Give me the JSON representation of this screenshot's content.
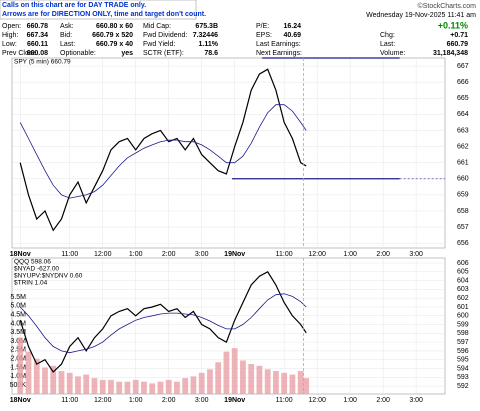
{
  "header": {
    "notice": [
      "Calls on this chart are for DAY TRADE only.",
      "Arrows are for DIRECTION ONLY, time and target don't count."
    ],
    "credit": "©StockCharts.com",
    "date": "Wednesday  19-Nov-2025  11:41 am",
    "stats": [
      [
        [
          "Open:",
          "660.78"
        ],
        [
          "Ask:",
          "660.80 x 60"
        ],
        [
          "Mid Cap:",
          "675.3B"
        ],
        [
          "P/E:",
          "16.24"
        ],
        [
          "+0.11%"
        ]
      ],
      [
        [
          "High:",
          "667.34"
        ],
        [
          "Bid:",
          "660.79 x 520"
        ],
        [
          "Fwd Dividend:",
          "7.32446"
        ],
        [
          "EPS:",
          "40.69"
        ],
        [
          "Chg:",
          "+0.71"
        ]
      ],
      [
        [
          "Low:",
          "660.11"
        ],
        [
          "Last:",
          "660.79 x 40"
        ],
        [
          "Fwd Yield:",
          "1.11%"
        ],
        [
          "Last Earnings:"
        ],
        [
          "Last:",
          "660.79"
        ]
      ],
      [
        [
          "Prev Close:",
          "660.08"
        ],
        [
          "Optionable:",
          "yes"
        ],
        [
          "SCTR (ETF):",
          "78.6"
        ],
        [
          "Next Earnings:"
        ],
        [
          "Volume:",
          "31,184,348"
        ]
      ]
    ]
  },
  "chart_data": [
    {
      "type": "line",
      "legend": [
        "SPY (5 min) 660.79"
      ],
      "x": [
        0,
        3,
        6,
        9,
        12,
        15,
        18,
        21,
        24,
        27,
        30,
        33,
        36,
        39,
        42,
        45,
        48,
        51,
        54,
        57,
        60,
        63,
        66,
        69,
        72,
        75,
        78,
        81,
        84,
        87,
        90,
        93,
        96,
        99,
        102,
        104
      ],
      "series": [
        {
          "color": "#000000",
          "values": [
            661,
            659,
            657.5,
            658,
            656.8,
            657.5,
            659,
            659.8,
            658.5,
            659.5,
            660.5,
            661.8,
            662.3,
            662.5,
            661.8,
            662.5,
            662.8,
            663,
            662.3,
            662.5,
            661.8,
            662.5,
            661.5,
            661,
            660.5,
            660.3,
            662,
            663.5,
            665.5,
            666.5,
            666.8,
            665.5,
            663.5,
            662.5,
            661,
            660.79
          ]
        },
        {
          "color": "#1c1c8c",
          "values": [
            663.5,
            662.5,
            661.5,
            660.5,
            659.6,
            659,
            658.8,
            658.9,
            659,
            659.2,
            659.6,
            660.2,
            660.8,
            661.3,
            661.6,
            661.9,
            662.1,
            662.3,
            662.4,
            662.4,
            662.3,
            662.3,
            662.1,
            661.8,
            661.4,
            661,
            661,
            661.4,
            662.2,
            663.2,
            664.1,
            664.6,
            664.6,
            664.2,
            663.5,
            663
          ]
        }
      ],
      "levels": [
        667.5,
        660
      ],
      "level_color": "#1c1c8c",
      "marker_x": 103,
      "xlim": [
        -3,
        154.5
      ],
      "xticks": [
        {
          "value": 0,
          "label": "18Nov"
        },
        {
          "value": 18,
          "label": "11:00"
        },
        {
          "value": 30,
          "label": "12:00"
        },
        {
          "value": 42,
          "label": "1:00"
        },
        {
          "value": 54,
          "label": "2:00"
        },
        {
          "value": 66,
          "label": "3:00"
        },
        {
          "value": 78,
          "label": "19Nov"
        },
        {
          "value": 96,
          "label": "11:00"
        },
        {
          "value": 108,
          "label": "12:00"
        },
        {
          "value": 120,
          "label": "1:00"
        },
        {
          "value": 132,
          "label": "2:00"
        },
        {
          "value": 144,
          "label": "3:00"
        }
      ],
      "ylim": [
        655.7,
        667.5
      ],
      "yticks": [
        656,
        657,
        658,
        659,
        660,
        661,
        662,
        663,
        664,
        665,
        666,
        667
      ],
      "grid": true
    },
    {
      "type": "line",
      "legend": [
        "QQQ 598.06",
        "$NYAD -627.00",
        "$NYUPV:$NYDNV 0.60",
        "$TRIN 1.04"
      ],
      "x": [
        0,
        3,
        6,
        9,
        12,
        15,
        18,
        21,
        24,
        27,
        30,
        33,
        36,
        39,
        42,
        45,
        48,
        51,
        54,
        57,
        60,
        63,
        66,
        69,
        72,
        75,
        78,
        81,
        84,
        87,
        90,
        93,
        96,
        99,
        102,
        104
      ],
      "series": [
        {
          "axis": "y2",
          "color": "#000000",
          "values": [
            599.5,
            596.5,
            594.5,
            595,
            593.6,
            594.5,
            596.5,
            597.5,
            596,
            597.5,
            598.5,
            600,
            600.5,
            600.8,
            600,
            600.8,
            601,
            601.3,
            600.5,
            600.8,
            599.8,
            600.5,
            599,
            598.5,
            597.5,
            597,
            599.5,
            601.5,
            603.5,
            604.5,
            605,
            603.5,
            601.5,
            600,
            599,
            598.06
          ]
        },
        {
          "axis": "y2",
          "color": "#1c1c8c",
          "values": [
            601,
            600,
            598.8,
            597.5,
            596.5,
            596,
            595.8,
            596,
            596.2,
            596.5,
            597,
            597.8,
            598.5,
            599,
            599.5,
            599.8,
            600,
            600.2,
            600.3,
            600.3,
            600.2,
            600.1,
            599.8,
            599.4,
            598.9,
            598.5,
            598.5,
            599,
            599.8,
            600.8,
            601.8,
            602.4,
            602.5,
            602.2,
            601.6,
            601
          ]
        },
        {
          "axis": "y",
          "mark": "bar",
          "color": "#e8a0a8",
          "values": [
            3200000,
            2400000,
            2000000,
            1500000,
            1600000,
            1300000,
            1200000,
            1000000,
            1100000,
            900000,
            800000,
            800000,
            700000,
            700000,
            800000,
            700000,
            600000,
            700000,
            800000,
            700000,
            900000,
            1000000,
            1200000,
            1400000,
            1800000,
            2400000,
            2600000,
            1900000,
            1700000,
            1600000,
            1400000,
            1300000,
            1200000,
            1100000,
            1300000,
            900000
          ]
        }
      ],
      "marker_x": 103,
      "xlim": [
        -3,
        154.5
      ],
      "xticks": [
        {
          "value": 0,
          "label": "18Nov"
        },
        {
          "value": 18,
          "label": "11:00"
        },
        {
          "value": 30,
          "label": "12:00"
        },
        {
          "value": 42,
          "label": "1:00"
        },
        {
          "value": 54,
          "label": "2:00"
        },
        {
          "value": 66,
          "label": "3:00"
        },
        {
          "value": 78,
          "label": "19Nov"
        },
        {
          "value": 96,
          "label": "11:00"
        },
        {
          "value": 108,
          "label": "12:00"
        },
        {
          "value": 120,
          "label": "1:00"
        },
        {
          "value": 132,
          "label": "2:00"
        },
        {
          "value": 144,
          "label": "3:00"
        }
      ],
      "ylim": [
        0,
        7710000
      ],
      "yticks": [
        {
          "value": 500000,
          "label": "500K"
        },
        {
          "value": 1000000,
          "label": "1.0M"
        },
        {
          "value": 1500000,
          "label": "1.5M"
        },
        {
          "value": 2000000,
          "label": "2.0M"
        },
        {
          "value": 2500000,
          "label": "2.5M"
        },
        {
          "value": 3000000,
          "label": "3.0M"
        },
        {
          "value": 3500000,
          "label": "3.5M"
        },
        {
          "value": 4000000,
          "label": "4.0M"
        },
        {
          "value": 4500000,
          "label": "4.5M"
        },
        {
          "value": 5000000,
          "label": "5.0M"
        },
        {
          "value": 5500000,
          "label": "5.5M"
        }
      ],
      "y2lim": [
        591.1,
        606.57
      ],
      "y2ticks": [
        592,
        593,
        594,
        595,
        596,
        597,
        598,
        599,
        600,
        601,
        602,
        603,
        604,
        605,
        606
      ],
      "grid": true
    }
  ]
}
